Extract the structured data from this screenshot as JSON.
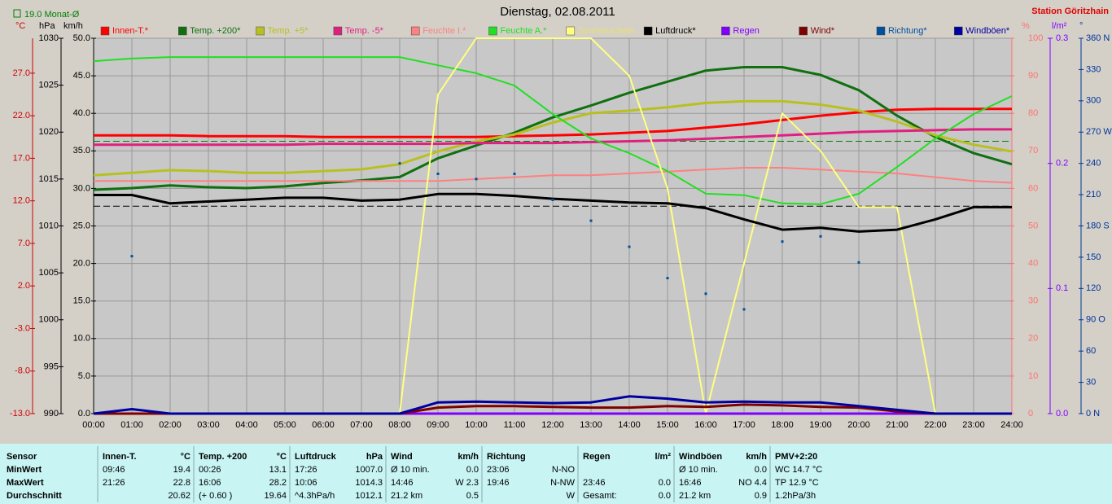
{
  "chart_data": {
    "type": "line",
    "title": "Dienstag, 02.08.2011",
    "station": "Station Göritzhain",
    "reference_lines": [
      {
        "label": "19.0 Monat-Ø",
        "value": 19.0,
        "axis": 0,
        "color": "#008000"
      },
      {
        "value": 1012.1,
        "axis": 1,
        "color": "#000000"
      }
    ],
    "grid": true,
    "xlim": [
      0,
      24
    ],
    "xticks": [
      {
        "value": 0,
        "label": "00:00"
      },
      {
        "value": 1,
        "label": "01:00"
      },
      {
        "value": 2,
        "label": "02:00"
      },
      {
        "value": 3,
        "label": "03:00"
      },
      {
        "value": 4,
        "label": "04:00"
      },
      {
        "value": 5,
        "label": "05:00"
      },
      {
        "value": 6,
        "label": "06:00"
      },
      {
        "value": 7,
        "label": "07:00"
      },
      {
        "value": 8,
        "label": "08:00"
      },
      {
        "value": 9,
        "label": "09:00"
      },
      {
        "value": 10,
        "label": "10:00"
      },
      {
        "value": 11,
        "label": "11:00"
      },
      {
        "value": 12,
        "label": "12:00"
      },
      {
        "value": 13,
        "label": "13:00"
      },
      {
        "value": 14,
        "label": "14:00"
      },
      {
        "value": 15,
        "label": "15:00"
      },
      {
        "value": 16,
        "label": "16:00"
      },
      {
        "value": 17,
        "label": "17:00"
      },
      {
        "value": 18,
        "label": "18:00"
      },
      {
        "value": 19,
        "label": "19:00"
      },
      {
        "value": 20,
        "label": "20:00"
      },
      {
        "value": 21,
        "label": "21:00"
      },
      {
        "value": 22,
        "label": "22:00"
      },
      {
        "value": 23,
        "label": "23:00"
      },
      {
        "value": 24,
        "label": "24:00"
      }
    ],
    "axes": [
      {
        "label": "°C",
        "color": "#d00000",
        "lim": [
          -13,
          31.1
        ],
        "ticks": [
          {
            "value": -13,
            "label": "-13.0"
          },
          {
            "value": -8,
            "label": "-8.0"
          },
          {
            "value": -3,
            "label": "-3.0"
          },
          {
            "value": 2,
            "label": "2.0"
          },
          {
            "value": 7,
            "label": "7.0"
          },
          {
            "value": 12,
            "label": "12.0"
          },
          {
            "value": 17,
            "label": "17.0"
          },
          {
            "value": 22,
            "label": "22.0"
          },
          {
            "value": 27,
            "label": "27.0"
          }
        ]
      },
      {
        "label": "hPa",
        "color": "#000000",
        "lim": [
          990,
          1030
        ],
        "ticks": [
          990,
          995,
          1000,
          1005,
          1010,
          1015,
          1020,
          1025,
          1030
        ]
      },
      {
        "label": "km/h",
        "color": "#000000",
        "lim": [
          0,
          50
        ],
        "ticks": [
          {
            "value": 0,
            "label": "0.0"
          },
          {
            "value": 5,
            "label": "5.0"
          },
          {
            "value": 10,
            "label": "10.0"
          },
          {
            "value": 15,
            "label": "15.0"
          },
          {
            "value": 20,
            "label": "20.0"
          },
          {
            "value": 25,
            "label": "25.0"
          },
          {
            "value": 30,
            "label": "30.0"
          },
          {
            "value": 35,
            "label": "35.0"
          },
          {
            "value": 40,
            "label": "40.0"
          },
          {
            "value": 45,
            "label": "45.0"
          },
          {
            "value": 50,
            "label": "50.0"
          }
        ]
      },
      {
        "label": "%",
        "color": "#ff7070",
        "lim": [
          0,
          100
        ],
        "ticks": [
          0,
          10,
          20,
          30,
          40,
          50,
          60,
          70,
          80,
          90,
          100
        ]
      },
      {
        "label": "l/m²",
        "color": "#8000ff",
        "lim": [
          0,
          0.3
        ],
        "ticks": [
          {
            "value": 0,
            "label": "0.0"
          },
          {
            "value": 0.1,
            "label": "0.1"
          },
          {
            "value": 0.2,
            "label": "0.2"
          },
          {
            "value": 0.3,
            "label": "0.3"
          }
        ]
      },
      {
        "label": "°",
        "color": "#003399",
        "lim": [
          0,
          360
        ],
        "ticks": [
          {
            "value": 0,
            "label": "0 N"
          },
          30,
          60,
          {
            "value": 90,
            "label": "90 O"
          },
          120,
          150,
          {
            "value": 180,
            "label": "180 S"
          },
          210,
          240,
          {
            "value": 270,
            "label": "270 W"
          },
          300,
          330,
          {
            "value": 360,
            "label": "360 N"
          }
        ]
      }
    ],
    "x": [
      0,
      1,
      2,
      3,
      4,
      5,
      6,
      7,
      8,
      9,
      10,
      11,
      12,
      13,
      14,
      15,
      16,
      17,
      18,
      19,
      20,
      21,
      22,
      23,
      24
    ],
    "series": [
      {
        "name": "Innen-T.*",
        "color": "#ff0000",
        "axis": 0,
        "values": [
          19.7,
          19.7,
          19.7,
          19.6,
          19.6,
          19.6,
          19.5,
          19.5,
          19.5,
          19.5,
          19.5,
          19.6,
          19.7,
          19.8,
          20.0,
          20.2,
          20.6,
          21.0,
          21.5,
          22.0,
          22.4,
          22.7,
          22.8,
          22.8,
          22.8
        ]
      },
      {
        "name": "Temp. +200*",
        "color": "#107010",
        "axis": 0,
        "values": [
          13.3,
          13.5,
          13.8,
          13.6,
          13.5,
          13.7,
          14.1,
          14.4,
          14.8,
          17.0,
          18.5,
          20.0,
          21.8,
          23.2,
          24.7,
          26.0,
          27.3,
          27.7,
          27.7,
          26.8,
          25.0,
          22.0,
          19.5,
          17.6,
          16.3
        ]
      },
      {
        "name": "Temp. +5*",
        "color": "#b8c020",
        "axis": 0,
        "values": [
          15.0,
          15.3,
          15.6,
          15.5,
          15.3,
          15.3,
          15.5,
          15.7,
          16.3,
          17.8,
          19.0,
          19.8,
          21.2,
          22.3,
          22.6,
          23.0,
          23.5,
          23.7,
          23.7,
          23.3,
          22.6,
          21.3,
          19.7,
          18.6,
          17.8
        ]
      },
      {
        "name": "Temp. -5*",
        "color": "#e0207f",
        "axis": 0,
        "values": [
          18.6,
          18.6,
          18.6,
          18.6,
          18.6,
          18.6,
          18.7,
          18.7,
          18.7,
          18.7,
          18.8,
          18.8,
          18.8,
          18.9,
          19.0,
          19.1,
          19.3,
          19.5,
          19.7,
          19.9,
          20.1,
          20.2,
          20.3,
          20.4,
          20.4
        ]
      },
      {
        "name": "Feuchte I.*",
        "color": "#ff8080",
        "axis": 3,
        "values": [
          62,
          62,
          62,
          62,
          62,
          62,
          62,
          62,
          62,
          62,
          62.5,
          63,
          63.5,
          63.5,
          64,
          64.5,
          65,
          65.5,
          65.5,
          65,
          64.5,
          64,
          63,
          62,
          61.5
        ]
      },
      {
        "name": "Feuchte A.*",
        "color": "#20e020",
        "axis": 3,
        "values": [
          93.9,
          94.6,
          95,
          95,
          95,
          95,
          95,
          95,
          95,
          92.8,
          90.7,
          87.4,
          79.8,
          73.3,
          69.4,
          64.6,
          58.6,
          58.2,
          56,
          55.8,
          58.6,
          65.7,
          73.3,
          79.8,
          84.6
        ]
      },
      {
        "name": "Sonnenschein",
        "color": "#ffff80",
        "axis": 3,
        "values": [
          0,
          0,
          0,
          0,
          0,
          0,
          0,
          0,
          0,
          85,
          100,
          100,
          100,
          100,
          90,
          60,
          0,
          40,
          80,
          70,
          55,
          55,
          0,
          0,
          0
        ]
      },
      {
        "name": "Luftdruck*",
        "color": "#000000",
        "axis": 1,
        "values": [
          1013.3,
          1013.3,
          1012.4,
          1012.6,
          1012.8,
          1013.0,
          1013.0,
          1012.7,
          1012.8,
          1013.4,
          1013.4,
          1013.2,
          1012.9,
          1012.7,
          1012.5,
          1012.4,
          1011.9,
          1010.7,
          1009.6,
          1009.8,
          1009.4,
          1009.6,
          1010.7,
          1012.0,
          1012.0
        ]
      },
      {
        "name": "Regen",
        "color": "#8000ff",
        "axis": 4,
        "values": [
          0,
          0,
          0,
          0,
          0,
          0,
          0,
          0,
          0,
          0,
          0,
          0,
          0,
          0,
          0,
          0,
          0,
          0,
          0,
          0,
          0,
          0,
          0,
          0,
          0
        ]
      },
      {
        "name": "Wind*",
        "color": "#800000",
        "axis": 2,
        "values": [
          0,
          0,
          0,
          0,
          0,
          0,
          0,
          0,
          0,
          0.8,
          1.0,
          1.0,
          0.9,
          0.8,
          0.8,
          1.0,
          0.9,
          1.2,
          1.1,
          0.9,
          0.8,
          0.3,
          0,
          0,
          0
        ]
      },
      {
        "name": "Richtung*",
        "color": "#0050a0",
        "axis": 5,
        "mode": "markers",
        "values": [
          null,
          151,
          null,
          null,
          null,
          null,
          null,
          null,
          240,
          230,
          225,
          230,
          205,
          185,
          160,
          130,
          115,
          100,
          165,
          170,
          145,
          null,
          null,
          null,
          null
        ]
      },
      {
        "name": "Windböen*",
        "color": "#0000a0",
        "axis": 2,
        "values": [
          0,
          0.6,
          0,
          0,
          0,
          0,
          0,
          0,
          0,
          1.5,
          1.6,
          1.5,
          1.4,
          1.5,
          2.3,
          2.0,
          1.5,
          1.6,
          1.5,
          1.5,
          1.0,
          0.5,
          0,
          0,
          0
        ]
      }
    ]
  },
  "table": {
    "sections": [
      {
        "header": [
          "Sensor",
          null
        ],
        "rows": [
          [
            "MinWert",
            null
          ],
          [
            "MaxWert",
            null
          ],
          [
            "Durchschnitt",
            null
          ]
        ]
      },
      {
        "header": [
          "Innen-T.",
          "°C"
        ],
        "rows": [
          [
            "09:46",
            "19.4"
          ],
          [
            "21:26",
            "22.8"
          ],
          [
            null,
            "20.62"
          ]
        ]
      },
      {
        "header": [
          "Temp. +200",
          "°C"
        ],
        "rows": [
          [
            "00:26",
            "13.1"
          ],
          [
            "16:06",
            "28.2"
          ],
          [
            "(+ 0.60 )",
            "19.64"
          ]
        ]
      },
      {
        "header": [
          "Luftdruck",
          "hPa"
        ],
        "rows": [
          [
            "17:26",
            "1007.0"
          ],
          [
            "10:06",
            "1014.3"
          ],
          [
            "^4.3hPa/h",
            "1012.1"
          ]
        ]
      },
      {
        "header": [
          "Wind",
          "km/h"
        ],
        "rows": [
          [
            "Ø 10 min.",
            "0.0"
          ],
          [
            "14:46",
            "W 2.3"
          ],
          [
            "21.2 km",
            "0.5"
          ]
        ]
      },
      {
        "header": [
          "Richtung",
          null
        ],
        "rows": [
          [
            "23:06",
            "N-NO"
          ],
          [
            "19:46",
            "N-NW"
          ],
          [
            null,
            "W"
          ]
        ]
      },
      {
        "header": [
          "Regen",
          "l/m²"
        ],
        "rows": [
          [
            null,
            null
          ],
          [
            "23:46",
            "0.0"
          ],
          [
            "Gesamt:",
            "0.0"
          ]
        ]
      },
      {
        "header": [
          "Windböen",
          "km/h"
        ],
        "rows": [
          [
            "Ø 10 min.",
            "0.0"
          ],
          [
            "16:46",
            "NO 4.4"
          ],
          [
            "21.2 km",
            "0.9"
          ]
        ]
      },
      {
        "header": [
          "PMV+2:20",
          null
        ],
        "rows": [
          [
            "WC 14.7 °C",
            null
          ],
          [
            "TP 12.9 °C",
            null
          ],
          [
            "1.2hPa/3h",
            null
          ]
        ]
      }
    ]
  }
}
